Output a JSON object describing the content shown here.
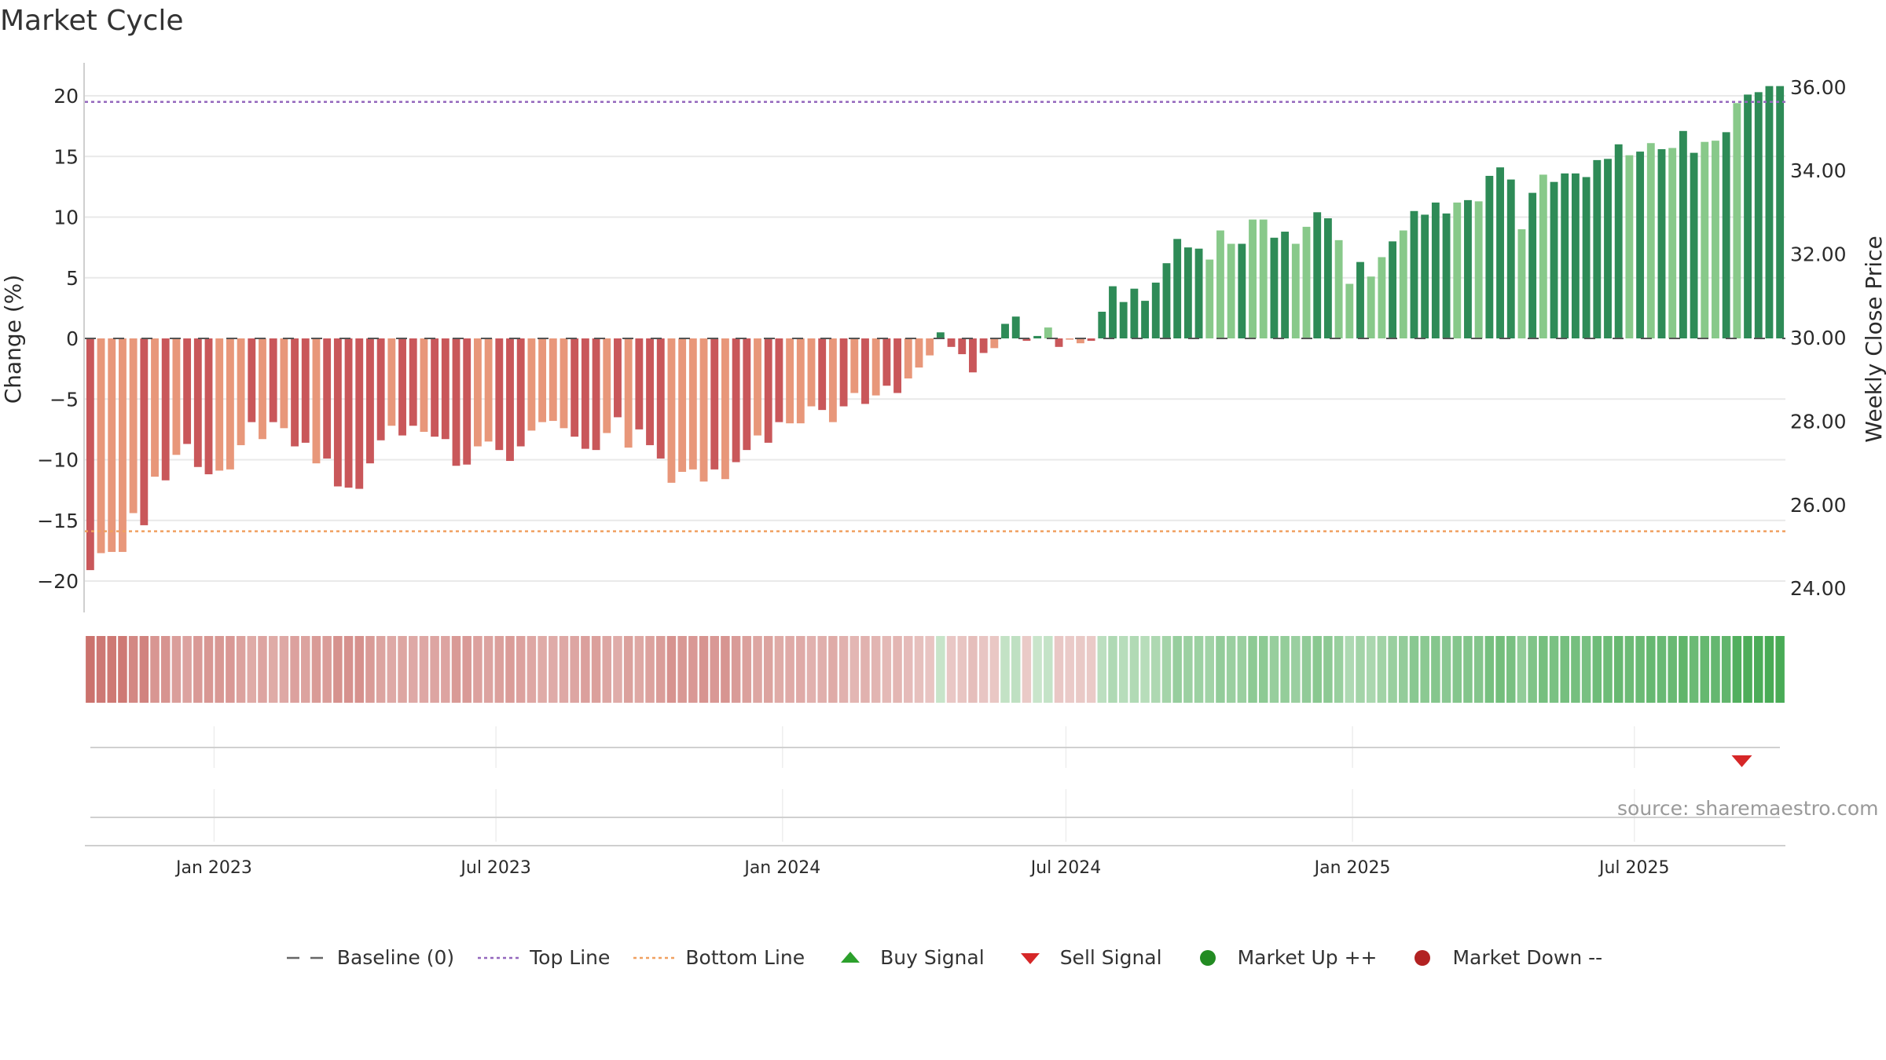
{
  "title": "Market Cycle",
  "source": "source: sharemaestro.com",
  "colors": {
    "neg_dark": "#c9575a",
    "neg_light": "#e8977a",
    "pos_dark": "#2e8b57",
    "pos_light": "#88c98a",
    "top_line": "#9467bd",
    "bottom_line": "#f0a060",
    "baseline": "#555555",
    "buy": "#2ca02c",
    "sell": "#d62728",
    "market_up": "#228b22",
    "market_down": "#b22222"
  },
  "legend": [
    {
      "label": "Baseline (0)",
      "icon": "dash-line"
    },
    {
      "label": "Top Line",
      "icon": "dotted-purple-line"
    },
    {
      "label": "Bottom Line",
      "icon": "dotted-orange-line"
    },
    {
      "label": "Buy Signal",
      "icon": "triangle-up"
    },
    {
      "label": "Sell Signal",
      "icon": "triangle-down"
    },
    {
      "label": "Market Up ++",
      "icon": "circle-green"
    },
    {
      "label": "Market Down --",
      "icon": "circle-red"
    }
  ],
  "chart_data": {
    "type": "bar",
    "title": "Market Cycle",
    "ylabel_left": "Change (%)",
    "ylabel_right": "Weekly Close Price",
    "ylim_left": [
      -22.5,
      22.5
    ],
    "yticks_left": [
      "20",
      "15",
      "10",
      "5",
      "0",
      "−10",
      "−15",
      "−20"
    ],
    "yticks_left_values": [
      20,
      15,
      10,
      5,
      0,
      -10,
      -15,
      -20
    ],
    "extra_left_tick": {
      "label": "−5",
      "value": -5
    },
    "yticks_right": [
      "36.00",
      "34.00",
      "32.00",
      "30.00",
      "28.00",
      "26.00",
      "24.00"
    ],
    "yticks_right_values": [
      36,
      34,
      32,
      30,
      28,
      26,
      24
    ],
    "top_line": 19.5,
    "bottom_line": -15.9,
    "baseline": 0,
    "x_start": "2022-10-10",
    "x_end": "2025-10-06",
    "xticks": [
      {
        "label": "Jan 2023",
        "date": "2023-01-01"
      },
      {
        "label": "Jul 2023",
        "date": "2023-07-01"
      },
      {
        "label": "Jan 2024",
        "date": "2024-01-01"
      },
      {
        "label": "Jul 2024",
        "date": "2024-07-01"
      },
      {
        "label": "Jan 2025",
        "date": "2025-01-01"
      },
      {
        "label": "Jul 2025",
        "date": "2025-07-01"
      }
    ],
    "series": [
      {
        "values": [
          -19.1,
          -17.7,
          -17.6,
          -17.6,
          -14.4,
          -15.4,
          -11.4,
          -11.7,
          -9.6,
          -8.7,
          -10.6,
          -11.2,
          -10.9,
          -10.8,
          -8.8,
          -6.9,
          -8.3,
          -6.9,
          -7.4,
          -8.9,
          -8.6,
          -10.3,
          -9.9,
          -12.2,
          -12.3,
          -12.4,
          -10.3,
          -8.4,
          -7.2,
          -8.0,
          -7.2,
          -7.7,
          -8.1,
          -8.3,
          -10.5,
          -10.4,
          -8.9,
          -8.5,
          -9.2,
          -10.1,
          -8.9,
          -7.6,
          -6.9,
          -6.8,
          -7.4,
          -8.1,
          -9.1,
          -9.2,
          -7.8,
          -6.5,
          -9.0,
          -7.5,
          -8.8,
          -9.9,
          -11.9,
          -11.0,
          -10.8,
          -11.8,
          -10.8,
          -11.6,
          -10.2,
          -9.2,
          -8.0,
          -8.6,
          -6.9,
          -7.0,
          -7.0,
          -5.6,
          -5.9,
          -6.9,
          -5.6,
          -4.5,
          -5.4,
          -4.7,
          -3.9,
          -4.5,
          -3.3,
          -2.4,
          -1.4,
          0.5,
          -0.7,
          -1.3,
          -2.8,
          -1.2,
          -0.8,
          1.2,
          1.8,
          -0.2,
          0.2,
          0.9,
          -0.7,
          -0.1,
          -0.4,
          -0.2,
          2.2,
          4.3,
          3.0,
          4.1,
          3.1,
          4.6,
          6.2,
          8.2,
          7.5,
          7.4,
          6.5,
          8.9,
          7.8,
          7.8,
          9.8,
          9.8,
          8.3,
          8.8,
          7.8,
          9.2,
          10.4,
          9.9,
          8.1,
          4.5,
          6.3,
          5.1,
          6.7,
          8.0,
          8.9,
          10.5,
          10.2,
          11.2,
          10.3,
          11.2,
          11.4,
          11.3,
          13.4,
          14.1,
          13.1,
          9.0,
          12.0,
          13.5,
          12.9,
          13.6,
          13.6,
          13.3,
          14.7,
          14.8,
          16.0,
          15.1,
          15.4,
          16.1,
          15.6,
          15.7,
          17.1,
          15.3,
          16.2,
          16.3,
          17.0,
          19.4,
          20.1,
          20.3,
          20.8,
          20.8
        ],
        "colors": "dnnnndndndddnnndndnddnddddddnddnddddnndddnnnndddndndddnnnndnddnddnnndndndnddnnndpdddnddppndnnddpppppppppnnnpnnppnnppnnpnnpnppppnpnpppnpnpppppppnpnpnppnnpnpppppnnpppp"
      }
    ],
    "heatmap_strip": "intensity per week from red (negative) to green (positive), mirrors change values",
    "signals": [
      {
        "type": "sell",
        "date": "2025-09-08"
      }
    ]
  }
}
